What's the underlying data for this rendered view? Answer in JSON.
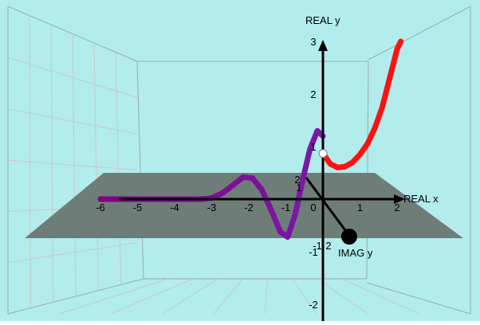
{
  "chart_data": {
    "type": "line",
    "projection": "3d",
    "axes": {
      "x": {
        "label": "REAL x",
        "ticks": [
          "-6",
          "-5",
          "-4",
          "-3",
          "-2",
          "-1",
          "0",
          "1",
          "2"
        ]
      },
      "y": {
        "label": "REAL y",
        "ticks": [
          "-2",
          "-1",
          "1",
          "2",
          "3"
        ]
      },
      "z": {
        "label": "IMAG y",
        "ticks": [
          "-1",
          "1",
          "2"
        ]
      }
    },
    "colors": {
      "background": "#b3ecec",
      "plane": "#6f7d79",
      "real_curve": "#ff1111",
      "complex_curve_start": "#800080",
      "complex_curve_end": "#7a1aa8",
      "grid": "#c9c9c9",
      "axis": "#000000",
      "highlight_point": "#ffffff"
    },
    "series": [
      {
        "part": "real",
        "x": [
          0.0,
          0.2,
          0.4,
          0.6,
          0.8,
          1.0,
          1.2,
          1.4,
          1.6,
          1.8,
          2.0,
          2.1
        ],
        "y": [
          0.87,
          0.67,
          0.6,
          0.62,
          0.7,
          0.85,
          1.05,
          1.35,
          1.75,
          2.3,
          2.85,
          3.0
        ],
        "imag": [
          0,
          0,
          0,
          0,
          0,
          0,
          0,
          0,
          0,
          0,
          0,
          0
        ]
      },
      {
        "part": "complex",
        "x": [
          -6.0,
          -5.0,
          -4.0,
          -3.3,
          -3.0,
          -2.7,
          -2.4,
          -2.15,
          -1.9,
          -1.65,
          -1.4,
          -1.15,
          -0.95,
          -0.75,
          -0.55,
          -0.35,
          -0.15,
          0.0
        ],
        "y": [
          0.0,
          0.0,
          0.0,
          0.0,
          0.02,
          0.12,
          0.28,
          0.42,
          0.4,
          0.18,
          -0.2,
          -0.62,
          -0.72,
          -0.3,
          0.35,
          0.95,
          1.3,
          1.2
        ],
        "imag": [
          0,
          0,
          0,
          0,
          0,
          0,
          0,
          0,
          0,
          0,
          0,
          0,
          0,
          0,
          0,
          0,
          0,
          0
        ]
      }
    ],
    "points": [
      {
        "name": "curve-marker",
        "x": 0.0,
        "y": 0.87,
        "imag": 0
      }
    ]
  }
}
